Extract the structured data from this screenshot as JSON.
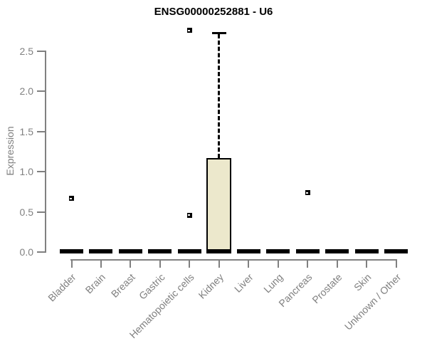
{
  "title": "ENSG00000252881 - U6",
  "chart_data": {
    "type": "boxplot",
    "title": "ENSG00000252881 - U6",
    "xlabel": "",
    "ylabel": "Expression",
    "ylim": [
      0,
      2.85
    ],
    "yticks": [
      0.0,
      0.5,
      1.0,
      1.5,
      2.0,
      2.5
    ],
    "grid": false,
    "legend_position": "none",
    "categories": [
      "Bladder",
      "Brain",
      "Breast",
      "Gastric",
      "Hematopoietic cells",
      "Kidney",
      "Liver",
      "Lung",
      "Pancreas",
      "Prostate",
      "Skin",
      "Unknown / Other"
    ],
    "boxes": [
      {
        "category": "Bladder",
        "whisker_low": 0,
        "q1": 0,
        "median": 0,
        "q3": 0,
        "whisker_high": 0,
        "outliers": [
          0.66
        ]
      },
      {
        "category": "Brain",
        "whisker_low": 0,
        "q1": 0,
        "median": 0,
        "q3": 0,
        "whisker_high": 0,
        "outliers": []
      },
      {
        "category": "Breast",
        "whisker_low": 0,
        "q1": 0,
        "median": 0,
        "q3": 0,
        "whisker_high": 0,
        "outliers": []
      },
      {
        "category": "Gastric",
        "whisker_low": 0,
        "q1": 0,
        "median": 0,
        "q3": 0,
        "whisker_high": 0,
        "outliers": []
      },
      {
        "category": "Hematopoietic cells",
        "whisker_low": 0,
        "q1": 0,
        "median": 0,
        "q3": 0,
        "whisker_high": 0,
        "outliers": [
          0.45,
          2.75
        ]
      },
      {
        "category": "Kidney",
        "whisker_low": 0,
        "q1": 0,
        "median": 0,
        "q3": 1.16,
        "whisker_high": 2.72,
        "outliers": []
      },
      {
        "category": "Liver",
        "whisker_low": 0,
        "q1": 0,
        "median": 0,
        "q3": 0,
        "whisker_high": 0,
        "outliers": []
      },
      {
        "category": "Lung",
        "whisker_low": 0,
        "q1": 0,
        "median": 0,
        "q3": 0,
        "whisker_high": 0,
        "outliers": []
      },
      {
        "category": "Pancreas",
        "whisker_low": 0,
        "q1": 0,
        "median": 0,
        "q3": 0,
        "whisker_high": 0,
        "outliers": [
          0.73
        ]
      },
      {
        "category": "Prostate",
        "whisker_low": 0,
        "q1": 0,
        "median": 0,
        "q3": 0,
        "whisker_high": 0,
        "outliers": []
      },
      {
        "category": "Skin",
        "whisker_low": 0,
        "q1": 0,
        "median": 0,
        "q3": 0,
        "whisker_high": 0,
        "outliers": []
      },
      {
        "category": "Unknown / Other",
        "whisker_low": 0,
        "q1": 0,
        "median": 0,
        "q3": 0,
        "whisker_high": 0,
        "outliers": []
      }
    ],
    "colors": {
      "box_fill": "#ece8cc",
      "box_border": "#000000",
      "axis": "#808080",
      "tick_label": "#808080",
      "title": "#000000"
    }
  }
}
